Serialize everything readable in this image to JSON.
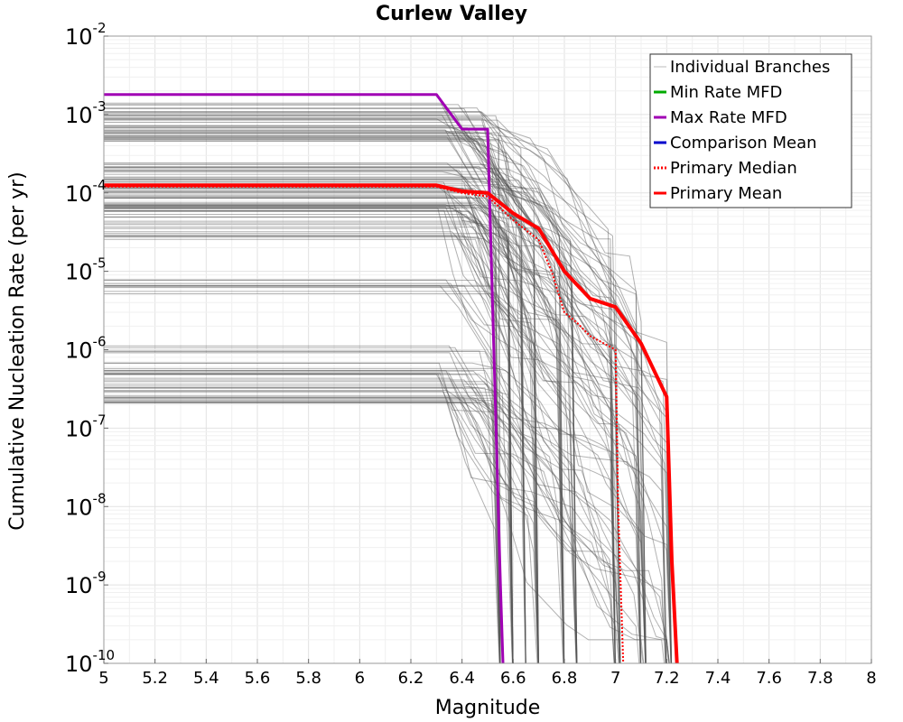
{
  "chart_data": {
    "type": "line",
    "title": "Curlew Valley",
    "xlabel": "Magnitude",
    "ylabel": "Cumulative Nucleation Rate (per yr)",
    "xlim": [
      5,
      8
    ],
    "ylim": [
      1e-10,
      0.01
    ],
    "y_scale": "log",
    "grid": true,
    "legend_position": "top-right",
    "x_ticks": [
      "5",
      "5.2",
      "5.4",
      "5.6",
      "5.8",
      "6",
      "6.2",
      "6.4",
      "6.6",
      "6.8",
      "7",
      "7.2",
      "7.4",
      "7.6",
      "7.8",
      "8"
    ],
    "y_ticks": [
      {
        "base": "10",
        "exp": "-2",
        "value": 0.01
      },
      {
        "base": "10",
        "exp": "-3",
        "value": 0.001
      },
      {
        "base": "10",
        "exp": "-4",
        "value": 0.0001
      },
      {
        "base": "10",
        "exp": "-5",
        "value": 1e-05
      },
      {
        "base": "10",
        "exp": "-6",
        "value": 1e-06
      },
      {
        "base": "10",
        "exp": "-7",
        "value": 1e-07
      },
      {
        "base": "10",
        "exp": "-8",
        "value": 1e-08
      },
      {
        "base": "10",
        "exp": "-9",
        "value": 1e-09
      },
      {
        "base": "10",
        "exp": "-10",
        "value": 1e-10
      }
    ],
    "legend": [
      {
        "label": "Individual Branches",
        "color": "#bbbbbb",
        "style": "solid"
      },
      {
        "label": "Min Rate MFD",
        "color": "#00aa00",
        "style": "solid"
      },
      {
        "label": "Max Rate MFD",
        "color": "#a000b4",
        "style": "solid"
      },
      {
        "label": "Comparison Mean",
        "color": "#0000cc",
        "style": "solid"
      },
      {
        "label": " Primary Median",
        "color": "#ff0000",
        "style": "dotted"
      },
      {
        "label": "Primary Mean",
        "color": "#ff0000",
        "style": "solid"
      }
    ],
    "series": [
      {
        "name": "Max Rate MFD",
        "color": "#a000b4",
        "x": [
          5,
          6.3,
          6.4,
          6.5,
          6.55,
          6.56
        ],
        "y": [
          0.0018,
          0.0018,
          0.00065,
          0.00065,
          1e-09,
          1e-10
        ]
      },
      {
        "name": "Primary Mean",
        "color": "#ff0000",
        "x": [
          5,
          6.3,
          6.4,
          6.5,
          6.6,
          6.7,
          6.8,
          6.9,
          7.0,
          7.1,
          7.2,
          7.22,
          7.24
        ],
        "y": [
          0.000125,
          0.000125,
          0.000105,
          0.0001,
          5.5e-05,
          3.5e-05,
          1e-05,
          4.5e-06,
          3.5e-06,
          1.2e-06,
          2.5e-07,
          2e-09,
          1e-10
        ]
      },
      {
        "name": "Primary Median",
        "color": "#ff0000",
        "x": [
          5,
          6.3,
          6.4,
          6.5,
          6.6,
          6.7,
          6.75,
          6.8,
          6.85,
          6.9,
          7.0,
          7.01,
          7.03
        ],
        "y": [
          0.00012,
          0.00012,
          0.0001,
          9e-05,
          4.5e-05,
          2.5e-05,
          1e-05,
          3e-06,
          2.2e-06,
          1.5e-06,
          1e-06,
          1e-08,
          1e-10
        ]
      }
    ]
  }
}
